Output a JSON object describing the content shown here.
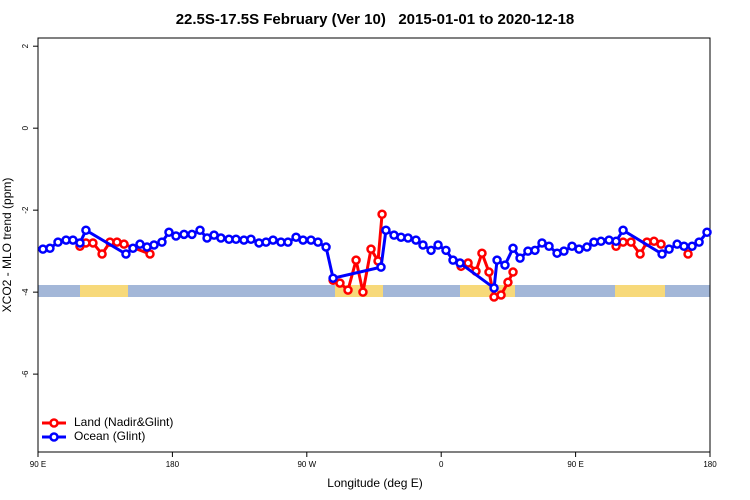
{
  "chart_data": {
    "type": "line",
    "title": "22.5S-17.5S February (Ver 10)   2015-01-01 to 2020-12-18",
    "x_label": "Longitude (deg E)",
    "y_label": "XCO2 - MLO trend (ppm)",
    "xlim": [
      90,
      540
    ],
    "xticks": [
      {
        "value": 90,
        "label": "90 E"
      },
      {
        "value": 180,
        "label": "180"
      },
      {
        "value": 270,
        "label": "90 W"
      },
      {
        "value": 360,
        "label": "0"
      },
      {
        "value": 450,
        "label": "90 E"
      },
      {
        "value": 540,
        "label": "180"
      }
    ],
    "ylim": [
      -7.9,
      2.2
    ],
    "yticks": [
      2,
      0,
      -2,
      -4,
      -6
    ],
    "legend": "bottom-left",
    "series": [
      {
        "name": "Land (Nadir&Glint)",
        "color": "#ff0000",
        "x": [
          118.1,
          122.1,
          126.8,
          132.9,
          138.2,
          142.9,
          147.6,
          165.0,
          200,
          287.6,
          292.2,
          297.6,
          303.0,
          307.6,
          313.0,
          317.7,
          320.4,
          350,
          373.3,
          378.0,
          383.3,
          387.3,
          392.0,
          395.4,
          400.1,
          404.7,
          408.1,
          450,
          477.1,
          481.8,
          487.1,
          493.2,
          497.8,
          502.5,
          507.2,
          515,
          525.3
        ],
        "values": [
          -2.88,
          -2.8,
          -2.8,
          -3.07,
          -2.78,
          -2.78,
          -2.83,
          -3.07,
          null,
          -3.71,
          -3.78,
          -3.95,
          -3.22,
          -4.0,
          -2.95,
          -3.24,
          -2.1,
          null,
          -3.37,
          -3.29,
          -3.49,
          -3.05,
          -3.51,
          -4.12,
          -4.07,
          -3.76,
          -3.51,
          null,
          -2.88,
          -2.78,
          -2.78,
          -3.07,
          -2.78,
          -2.76,
          -2.83,
          null,
          -3.07
        ]
      },
      {
        "name": "Ocean (Glint)",
        "color": "#0000ff",
        "x": [
          93.3,
          98.0,
          103.4,
          108.8,
          113.4,
          118.1,
          122.1,
          148.9,
          153.6,
          158.3,
          163.0,
          167.7,
          173.0,
          177.7,
          182.4,
          187.8,
          193.1,
          198.5,
          203.2,
          207.9,
          212.5,
          217.9,
          222.6,
          227.9,
          232.6,
          238.0,
          242.7,
          247.4,
          252.7,
          257.4,
          262.8,
          267.5,
          272.8,
          277.5,
          282.9,
          287.6,
          319.7,
          323.0,
          328.4,
          333.1,
          337.8,
          343.1,
          347.8,
          353.2,
          357.9,
          363.2,
          367.9,
          372.6,
          395.4,
          397.4,
          402.7,
          408.1,
          412.8,
          418.1,
          422.8,
          427.5,
          432.2,
          437.6,
          442.2,
          447.6,
          452.3,
          457.6,
          462.3,
          467.0,
          472.4,
          477.1,
          481.8,
          507.9,
          512.6,
          518.0,
          522.6,
          528.0,
          532.7,
          538.0
        ],
        "values": [
          -2.95,
          -2.93,
          -2.78,
          -2.73,
          -2.73,
          -2.8,
          -2.49,
          -3.07,
          -2.93,
          -2.83,
          -2.9,
          -2.85,
          -2.78,
          -2.54,
          -2.63,
          -2.59,
          -2.59,
          -2.49,
          -2.68,
          -2.61,
          -2.68,
          -2.71,
          -2.71,
          -2.73,
          -2.71,
          -2.8,
          -2.78,
          -2.73,
          -2.78,
          -2.78,
          -2.66,
          -2.73,
          -2.73,
          -2.78,
          -2.9,
          -3.66,
          -3.39,
          -2.49,
          -2.61,
          -2.66,
          -2.68,
          -2.73,
          -2.85,
          -2.98,
          -2.85,
          -2.98,
          -3.22,
          -3.29,
          -3.9,
          -3.22,
          -3.34,
          -2.93,
          -3.17,
          -3.0,
          -2.98,
          -2.8,
          -2.88,
          -3.05,
          -3.0,
          -2.88,
          -2.95,
          -2.9,
          -2.78,
          -2.76,
          -2.73,
          -2.76,
          -2.49,
          -3.07,
          -2.95,
          -2.83,
          -2.88,
          -2.88,
          -2.78,
          -2.54
        ]
      }
    ]
  }
}
